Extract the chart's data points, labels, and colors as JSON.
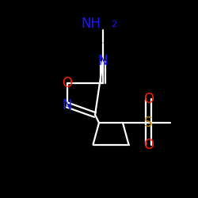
{
  "background_color": "#000000",
  "bond_color": "#ffffff",
  "atom_colors": {
    "N": "#1a1aff",
    "O": "#ff2200",
    "S": "#b8860b",
    "NH2": "#1a1aff"
  },
  "lw": 1.6,
  "fontsize": 11
}
